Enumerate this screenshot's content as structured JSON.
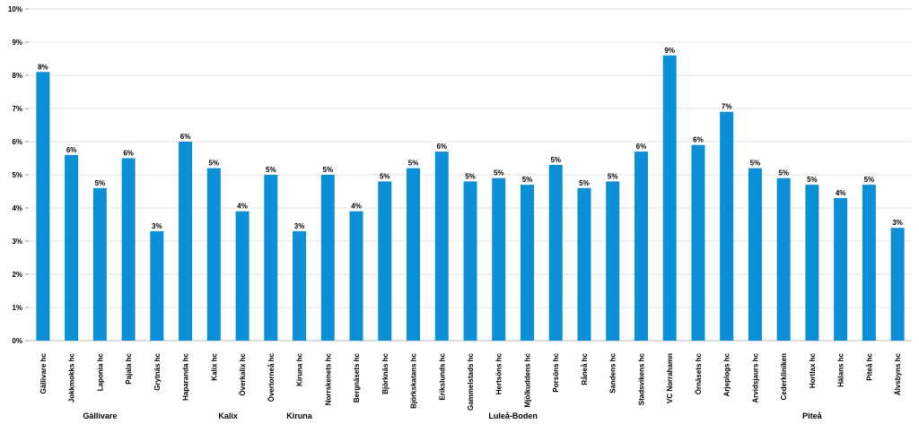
{
  "chart_data": {
    "type": "bar",
    "title": "",
    "xlabel": "",
    "ylabel": "",
    "ylim": [
      0,
      0.1
    ],
    "y_ticks": [
      "0%",
      "1%",
      "2%",
      "3%",
      "4%",
      "5%",
      "6%",
      "7%",
      "8%",
      "9%",
      "10%"
    ],
    "grid": true,
    "bar_color": "#0b8fd6",
    "categories": [
      "Gällivare hc",
      "Jokkmokks hc",
      "Laponia hc",
      "Pajala hc",
      "Grytnäs hc",
      "Haparanda hc",
      "Kalix hc",
      "Överkalix hc",
      "Övertorneå hc",
      "Kiruna hc",
      "Norrskenets hc",
      "Bergnäsets hc",
      "Björknäs hc",
      "Björkskatans hc",
      "Erikslunds hc",
      "Gammelstads hc",
      "Hertsöns hc",
      "Mjölkuddens hc",
      "Porsöns hc",
      "Råneå hc",
      "Sandens hc",
      "Stadsvikens hc",
      "VC Norrahamn",
      "Örnäsets hc",
      "Arjeplogs hc",
      "Arvidsjaurs hc",
      "Cederkliniken",
      "Hortlax hc",
      "Hälans hc",
      "Piteå hc",
      "Älvsbyns hc"
    ],
    "values": [
      0.081,
      0.056,
      0.046,
      0.055,
      0.033,
      0.06,
      0.052,
      0.039,
      0.05,
      0.033,
      0.05,
      0.039,
      0.048,
      0.052,
      0.057,
      0.048,
      0.049,
      0.047,
      0.053,
      0.046,
      0.048,
      0.057,
      0.086,
      0.059,
      0.069,
      0.052,
      0.049,
      0.047,
      0.043,
      0.047,
      0.034
    ],
    "value_labels": [
      "8%",
      "6%",
      "5%",
      "6%",
      "3%",
      "6%",
      "5%",
      "4%",
      "5%",
      "3%",
      "5%",
      "4%",
      "5%",
      "5%",
      "6%",
      "5%",
      "5%",
      "5%",
      "5%",
      "5%",
      "5%",
      "6%",
      "9%",
      "6%",
      "7%",
      "5%",
      "5%",
      "5%",
      "4%",
      "5%",
      "3%"
    ],
    "groups": [
      {
        "name": "Gällivare",
        "start": 0,
        "end": 4
      },
      {
        "name": "Kalix",
        "start": 5,
        "end": 8
      },
      {
        "name": "Kiruna",
        "start": 9,
        "end": 9
      },
      {
        "name": "Luleå-Boden",
        "start": 10,
        "end": 23
      },
      {
        "name": "Piteå",
        "start": 24,
        "end": 30
      }
    ]
  }
}
